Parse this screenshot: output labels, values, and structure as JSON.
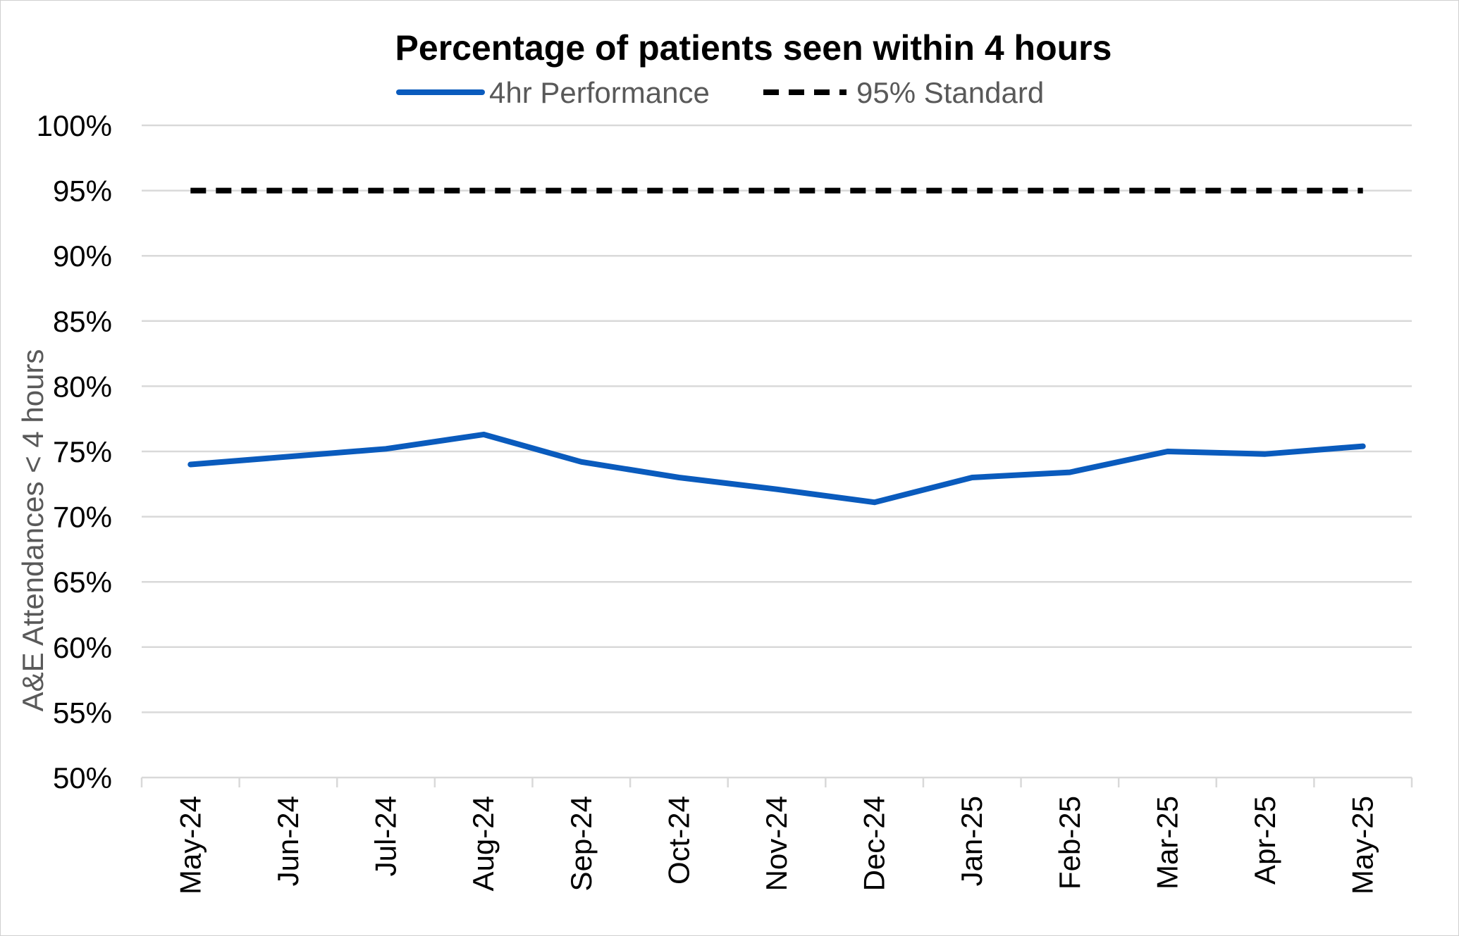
{
  "chart_data": {
    "type": "line",
    "title": "Percentage of patients seen within 4 hours",
    "ylabel": "A&E Attendances < 4 hours",
    "xlabel": "",
    "categories": [
      "May-24",
      "Jun-24",
      "Jul-24",
      "Aug-24",
      "Sep-24",
      "Oct-24",
      "Nov-24",
      "Dec-24",
      "Jan-25",
      "Feb-25",
      "Mar-25",
      "Apr-25",
      "May-25"
    ],
    "series": [
      {
        "name": "4hr Performance",
        "color": "#0a5bbd",
        "style": "solid",
        "values": [
          74.0,
          74.6,
          75.2,
          76.3,
          74.2,
          73.0,
          72.1,
          71.1,
          73.0,
          73.4,
          75.0,
          74.8,
          75.4
        ]
      },
      {
        "name": "95% Standard",
        "color": "#000000",
        "style": "dashed",
        "values": [
          95,
          95,
          95,
          95,
          95,
          95,
          95,
          95,
          95,
          95,
          95,
          95,
          95
        ]
      }
    ],
    "ylim": [
      50,
      100
    ],
    "yticks": [
      "50%",
      "55%",
      "60%",
      "65%",
      "70%",
      "75%",
      "80%",
      "85%",
      "90%",
      "95%",
      "100%"
    ],
    "grid": true,
    "legend_position": "top"
  }
}
